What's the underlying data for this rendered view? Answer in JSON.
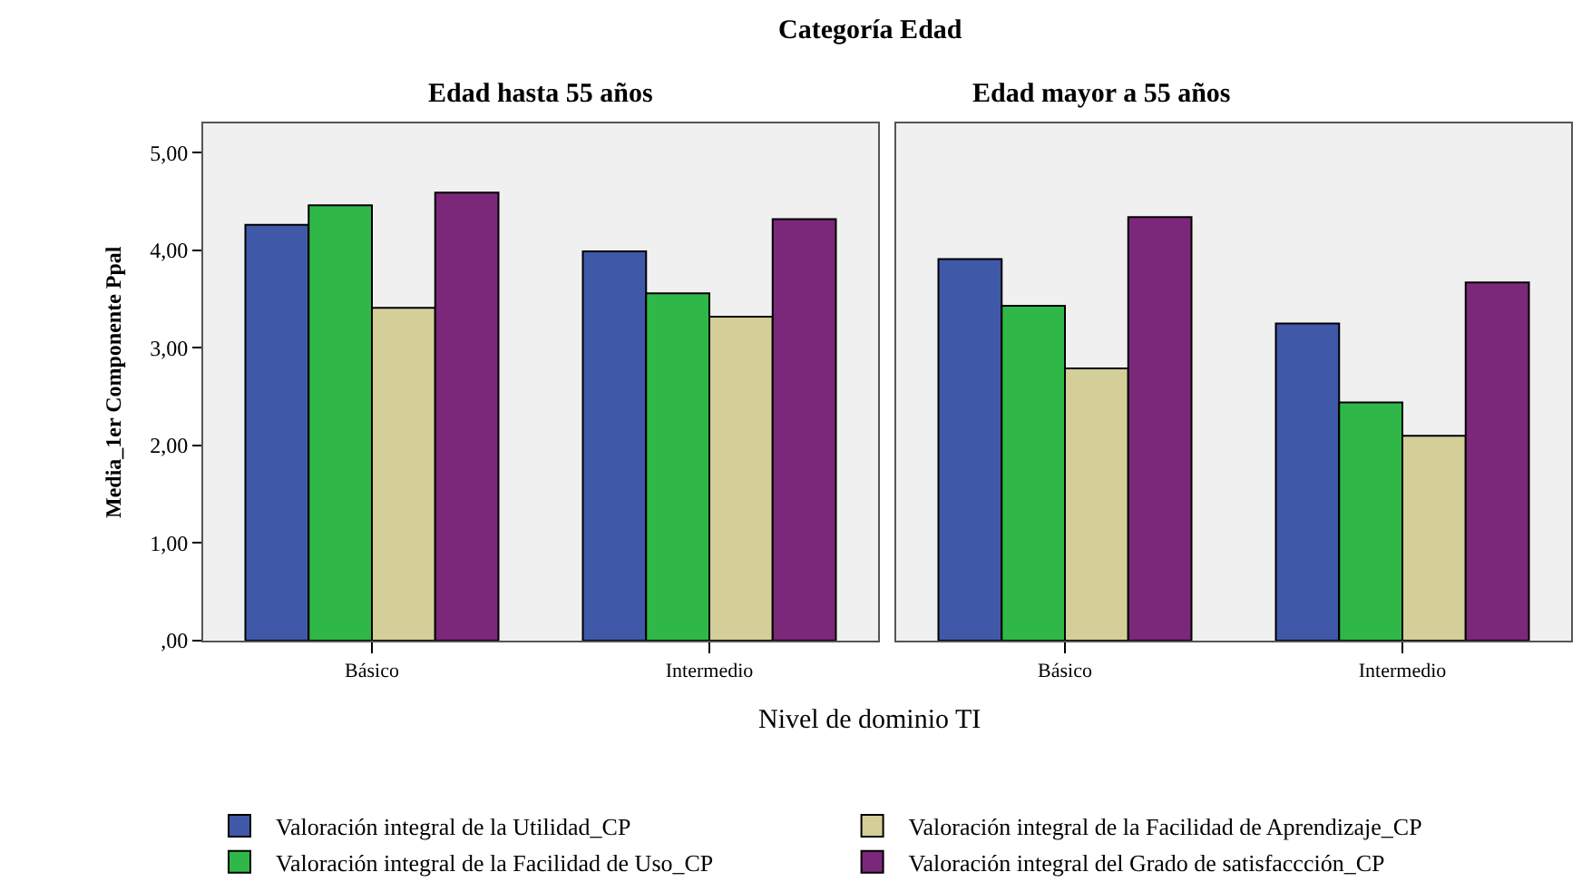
{
  "chart_data": [
    {
      "type": "bar",
      "title": "Edad hasta 55 años",
      "ylabel": "Media_1er Componente Ppal",
      "xlabel": "Nivel de dominio TI",
      "annotations": [
        "Categoría Edad"
      ],
      "categories": [
        "Básico",
        "Intermedio"
      ],
      "series": [
        {
          "name": "Valoración integral de la Utilidad_CP",
          "color": "#3f58a8",
          "values": [
            4.26,
            3.99
          ]
        },
        {
          "name": "Valoración integral de la Facilidad de Uso_CP",
          "color": "#2fb848",
          "values": [
            4.46,
            3.56
          ]
        },
        {
          "name": "Valoración integral de la Facilidad de Aprendizaje_CP",
          "color": "#d4cf98",
          "values": [
            3.41,
            3.32
          ]
        },
        {
          "name": "Valoración integral del Grado de satisfaccción_CP",
          "color": "#7b277a",
          "values": [
            4.59,
            4.32
          ]
        }
      ],
      "ylim": [
        0,
        5.3
      ],
      "yticks": [
        {
          "value": 0,
          "label": ",00"
        },
        {
          "value": 1,
          "label": "1,00"
        },
        {
          "value": 2,
          "label": "2,00"
        },
        {
          "value": 3,
          "label": "3,00"
        },
        {
          "value": 4,
          "label": "4,00"
        },
        {
          "value": 5,
          "label": "5,00"
        }
      ],
      "grid": false,
      "legend": "bottom"
    },
    {
      "type": "bar",
      "title": "Edad mayor a 55 años",
      "categories": [
        "Básico",
        "Intermedio"
      ],
      "series": [
        {
          "color": "#3f58a8",
          "values": [
            3.91,
            3.25
          ]
        },
        {
          "color": "#2fb848",
          "values": [
            3.43,
            2.44
          ]
        },
        {
          "color": "#d4cf98",
          "values": [
            2.79,
            2.1
          ]
        },
        {
          "color": "#7b277a",
          "values": [
            4.34,
            3.67
          ]
        }
      ],
      "ylim": [
        0,
        5.3
      ],
      "grid": false,
      "legend": false,
      "tick_labels": "x"
    }
  ]
}
